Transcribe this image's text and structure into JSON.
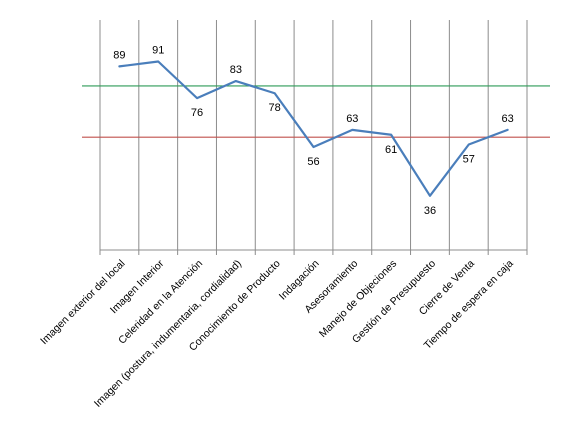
{
  "chart_data": {
    "type": "line",
    "categories": [
      "Imagen exterior del local",
      "Imagen Interior",
      "Celeridad en la Atención",
      "Imagen (postura, indumentaria, cordialidad)",
      "Conocimiento de Producto",
      "Indagación",
      "Asesoramiento",
      "Manejo de Objeciones",
      "Gestión  de Presupuesto",
      "Cierre de Venta",
      "Tiempo de espera en caja"
    ],
    "series": [
      {
        "values": [
          89,
          91,
          76,
          83,
          78,
          56,
          63,
          61,
          36,
          57,
          63
        ],
        "color": "#4a7ebb"
      }
    ],
    "reference_lines": [
      {
        "value": 81,
        "color": "#2e9b57"
      },
      {
        "value": 60,
        "color": "#c0504d"
      }
    ],
    "value_labels": [
      "89",
      "91",
      "76",
      "83",
      "78",
      "56",
      "63",
      "61",
      "36",
      "57",
      "63"
    ],
    "ylim": [
      13.8,
      108
    ],
    "grid": "vertical",
    "gridline_color": "#8c8c8c"
  }
}
